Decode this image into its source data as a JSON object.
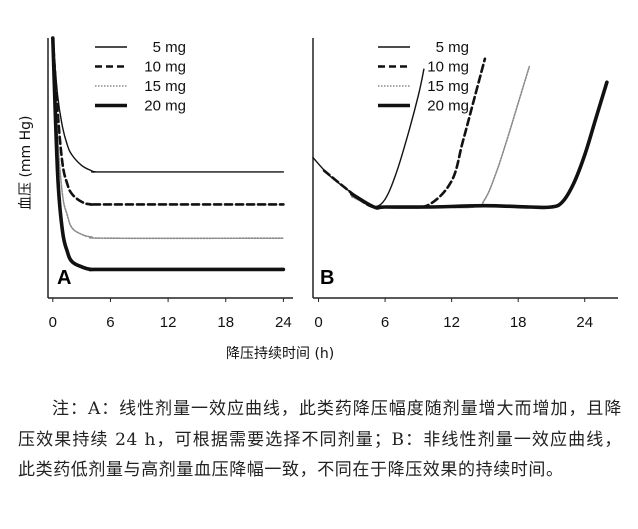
{
  "chart_data": [
    {
      "panel": "A",
      "type": "line",
      "xlabel": "降压持续时间 (h)",
      "ylabel": "血压 (mm Hg)",
      "xlim": [
        -0.5,
        25
      ],
      "xticks": [
        "0",
        "6",
        "12",
        "18",
        "24"
      ],
      "grid": false,
      "legend_position": "top",
      "series": [
        {
          "name": "5 mg",
          "style": "thin-solid",
          "x": [
            0,
            0.5,
            1,
            1.5,
            2,
            3,
            4,
            4.5,
            6,
            24
          ],
          "y": [
            100,
            78,
            66,
            59,
            55,
            51,
            49,
            48.5,
            48.5,
            48.5
          ]
        },
        {
          "name": "10 mg",
          "style": "dashed",
          "x": [
            0,
            0.5,
            1,
            1.5,
            2,
            3,
            4,
            6,
            24
          ],
          "y": [
            100,
            72,
            52,
            44,
            40,
            37,
            36,
            36,
            36
          ]
        },
        {
          "name": "15 mg",
          "style": "dotted-gray",
          "x": [
            0,
            0.5,
            1,
            1.5,
            2,
            3,
            4,
            6,
            24
          ],
          "y": [
            100,
            62,
            40,
            32,
            27,
            24.5,
            23.5,
            23,
            23
          ]
        },
        {
          "name": "20 mg",
          "style": "thick-solid",
          "x": [
            0,
            0.5,
            1,
            1.5,
            2,
            3,
            4,
            6,
            24
          ],
          "y": [
            100,
            48,
            26,
            18,
            14,
            12,
            11,
            11,
            11
          ]
        }
      ]
    },
    {
      "panel": "B",
      "type": "line",
      "xlabel": "降压持续时间 (h)",
      "ylabel": "血压 (mm Hg)",
      "xlim": [
        -0.5,
        27
      ],
      "xticks": [
        "0",
        "6",
        "12",
        "18",
        "24"
      ],
      "grid": false,
      "legend_position": "top",
      "series": [
        {
          "name": "5 mg",
          "style": "thin-solid",
          "x": [
            -0.5,
            1,
            2.5,
            4,
            5,
            6,
            7,
            8,
            9,
            9.5
          ],
          "y": [
            54,
            47,
            42,
            37,
            35,
            38,
            48,
            62,
            78,
            88
          ]
        },
        {
          "name": "10 mg",
          "style": "dashed",
          "x": [
            0.5,
            2.5,
            4,
            5,
            6,
            8,
            10,
            12,
            13,
            14,
            15
          ],
          "y": [
            49,
            42,
            37,
            35,
            35,
            35,
            36,
            45,
            60,
            76,
            92
          ]
        },
        {
          "name": "15 mg",
          "style": "dotted-gray",
          "x": [
            3,
            5,
            6,
            10,
            14,
            15,
            16,
            17,
            18,
            19
          ],
          "y": [
            39,
            35,
            35,
            35,
            35,
            38,
            48,
            61,
            75,
            89
          ]
        },
        {
          "name": "20 mg",
          "style": "thick-solid",
          "x": [
            3,
            5,
            6,
            10,
            15,
            19,
            21,
            22,
            23,
            24,
            25,
            26
          ],
          "y": [
            40,
            35,
            35,
            35,
            35.5,
            35,
            35,
            37,
            44,
            55,
            69,
            83
          ]
        }
      ]
    }
  ],
  "figure": {
    "panel_a_label": "A",
    "panel_b_label": "B",
    "y_axis_title": "血压 (mm Hg)",
    "x_axis_title": "降压持续时间 (h)"
  },
  "caption": "注：A：线性剂量一效应曲线，此类药降压幅度随剂量增大而增加，且降压效果持续 24 h，可根据需要选择不同剂量；B：非线性剂量一效应曲线，此类药低剂量与高剂量血压降幅一致，不同在于降压效果的持续时间。",
  "colors": {
    "line": "#111111",
    "dotted": "#8a8a8a",
    "figure_bg": "#ffffff",
    "caption_text": "#222222"
  }
}
